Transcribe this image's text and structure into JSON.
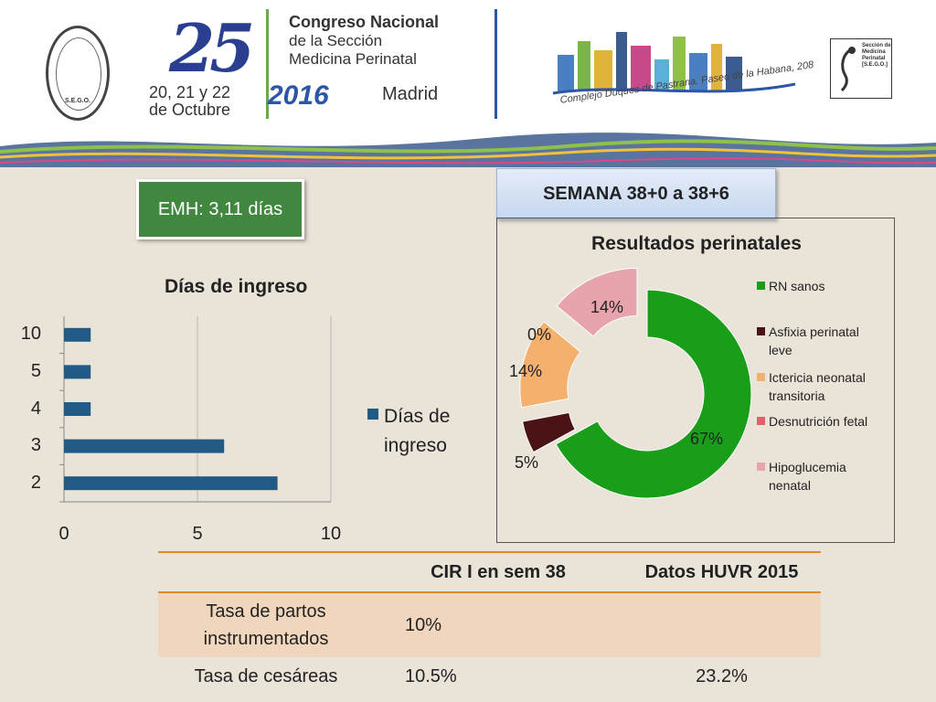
{
  "header": {
    "number": "25",
    "dates": "20, 21 y 22\nde Octubre",
    "title_line1": "Congreso Nacional",
    "title_line2": "de la Sección",
    "title_line3": "Medicina Perinatal",
    "year": "2016",
    "city": "Madrid",
    "venue": "Complejo Duques de Pastrana. Paseo de la Habana, 208",
    "seal_text": "S.E.G.O.",
    "right_logo_text": "Sección de Medicina Perinatal [S.E.G.O.]"
  },
  "callout": {
    "text": "EMH: 3,11 días",
    "color": "#41873f"
  },
  "semana_box": {
    "text": "SEMANA 38+0 a 38+6"
  },
  "chart_data": [
    {
      "type": "bar",
      "orientation": "horizontal",
      "title": "Días de ingreso",
      "categories": [
        "2",
        "3",
        "4",
        "5",
        "10"
      ],
      "series": [
        {
          "name": "Días de ingreso",
          "values": [
            8,
            6,
            1,
            1,
            1
          ],
          "color": "#215a84"
        }
      ],
      "xlim": [
        0,
        10
      ],
      "xticks": [
        "0",
        "5",
        "10"
      ],
      "legend_text": "Días de\ningreso",
      "grid": true,
      "legend": "right"
    },
    {
      "type": "pie",
      "subtype": "donut",
      "title": "Resultados perinatales",
      "labels": [
        "RN sanos",
        "Asfixia perinatal leve",
        "Ictericia neonatal transitoria",
        "Desnutrición fetal",
        "Hipoglucemia nenatal"
      ],
      "legend_labels": [
        [
          "RN sanos"
        ],
        [
          "Asfixia perinatal",
          "leve"
        ],
        [
          "Ictericia neonatal",
          "transitoria"
        ],
        [
          "Desnutrición fetal"
        ],
        [
          "Hipoglucemia",
          "nenatal"
        ]
      ],
      "values": [
        67,
        5,
        14,
        0,
        14
      ],
      "percent_labels": [
        "67%",
        "5%",
        "14%",
        "0%",
        "14%"
      ],
      "colors": [
        "#1a9e1a",
        "#4a1416",
        "#f5b06e",
        "#e0636b",
        "#e8a4ac"
      ],
      "legend": "right"
    }
  ],
  "table": {
    "headers": [
      "",
      "CIR I en sem 38",
      "Datos HUVR 2015"
    ],
    "rows": [
      [
        "Tasa de partos instrumentados",
        "10%",
        ""
      ],
      [
        "Tasa de cesáreas",
        "10.5%",
        "23.2%"
      ]
    ],
    "header_line_color": "#e08a2a",
    "highlight_row_color": "#efd6bd"
  }
}
